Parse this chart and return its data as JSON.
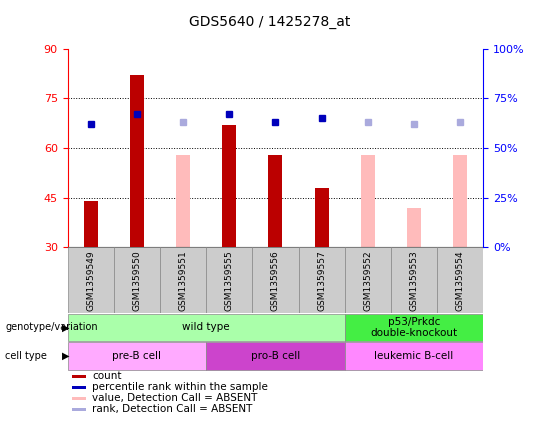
{
  "title": "GDS5640 / 1425278_at",
  "samples": [
    "GSM1359549",
    "GSM1359550",
    "GSM1359551",
    "GSM1359555",
    "GSM1359556",
    "GSM1359557",
    "GSM1359552",
    "GSM1359553",
    "GSM1359554"
  ],
  "count_values": [
    44,
    82,
    null,
    67,
    58,
    48,
    null,
    null,
    null
  ],
  "rank_values": [
    62,
    67,
    null,
    67,
    63,
    65,
    null,
    null,
    null
  ],
  "absent_value": [
    null,
    null,
    58,
    null,
    null,
    null,
    58,
    42,
    58
  ],
  "absent_rank": [
    null,
    null,
    63,
    null,
    null,
    null,
    63,
    62,
    63
  ],
  "ylim_left": [
    30,
    90
  ],
  "ylim_right": [
    0,
    100
  ],
  "yticks_left": [
    30,
    45,
    60,
    75,
    90
  ],
  "yticks_right": [
    0,
    25,
    50,
    75,
    100
  ],
  "right_ylabels": [
    "0%",
    "25%",
    "50%",
    "75%",
    "100%"
  ],
  "bar_color": "#bb0000",
  "absent_bar_color": "#ffbbbb",
  "rank_color": "#0000bb",
  "absent_rank_color": "#aaaadd",
  "background_color": "#ffffff",
  "plot_bg": "#ffffff",
  "genotype_groups": [
    {
      "label": "wild type",
      "start": 0,
      "end": 6,
      "color": "#aaffaa"
    },
    {
      "label": "p53/Prkdc\ndouble-knockout",
      "start": 6,
      "end": 9,
      "color": "#44ee44"
    }
  ],
  "cell_type_groups": [
    {
      "label": "pre-B cell",
      "start": 0,
      "end": 3,
      "color": "#ffaaff"
    },
    {
      "label": "pro-B cell",
      "start": 3,
      "end": 6,
      "color": "#cc55cc"
    },
    {
      "label": "leukemic B-cell",
      "start": 6,
      "end": 9,
      "color": "#ff88ff"
    }
  ],
  "legend_items": [
    {
      "label": "count",
      "color": "#bb0000"
    },
    {
      "label": "percentile rank within the sample",
      "color": "#0000bb"
    },
    {
      "label": "value, Detection Call = ABSENT",
      "color": "#ffbbbb"
    },
    {
      "label": "rank, Detection Call = ABSENT",
      "color": "#aaaadd"
    }
  ],
  "bar_width": 0.3,
  "dot_size": 5
}
